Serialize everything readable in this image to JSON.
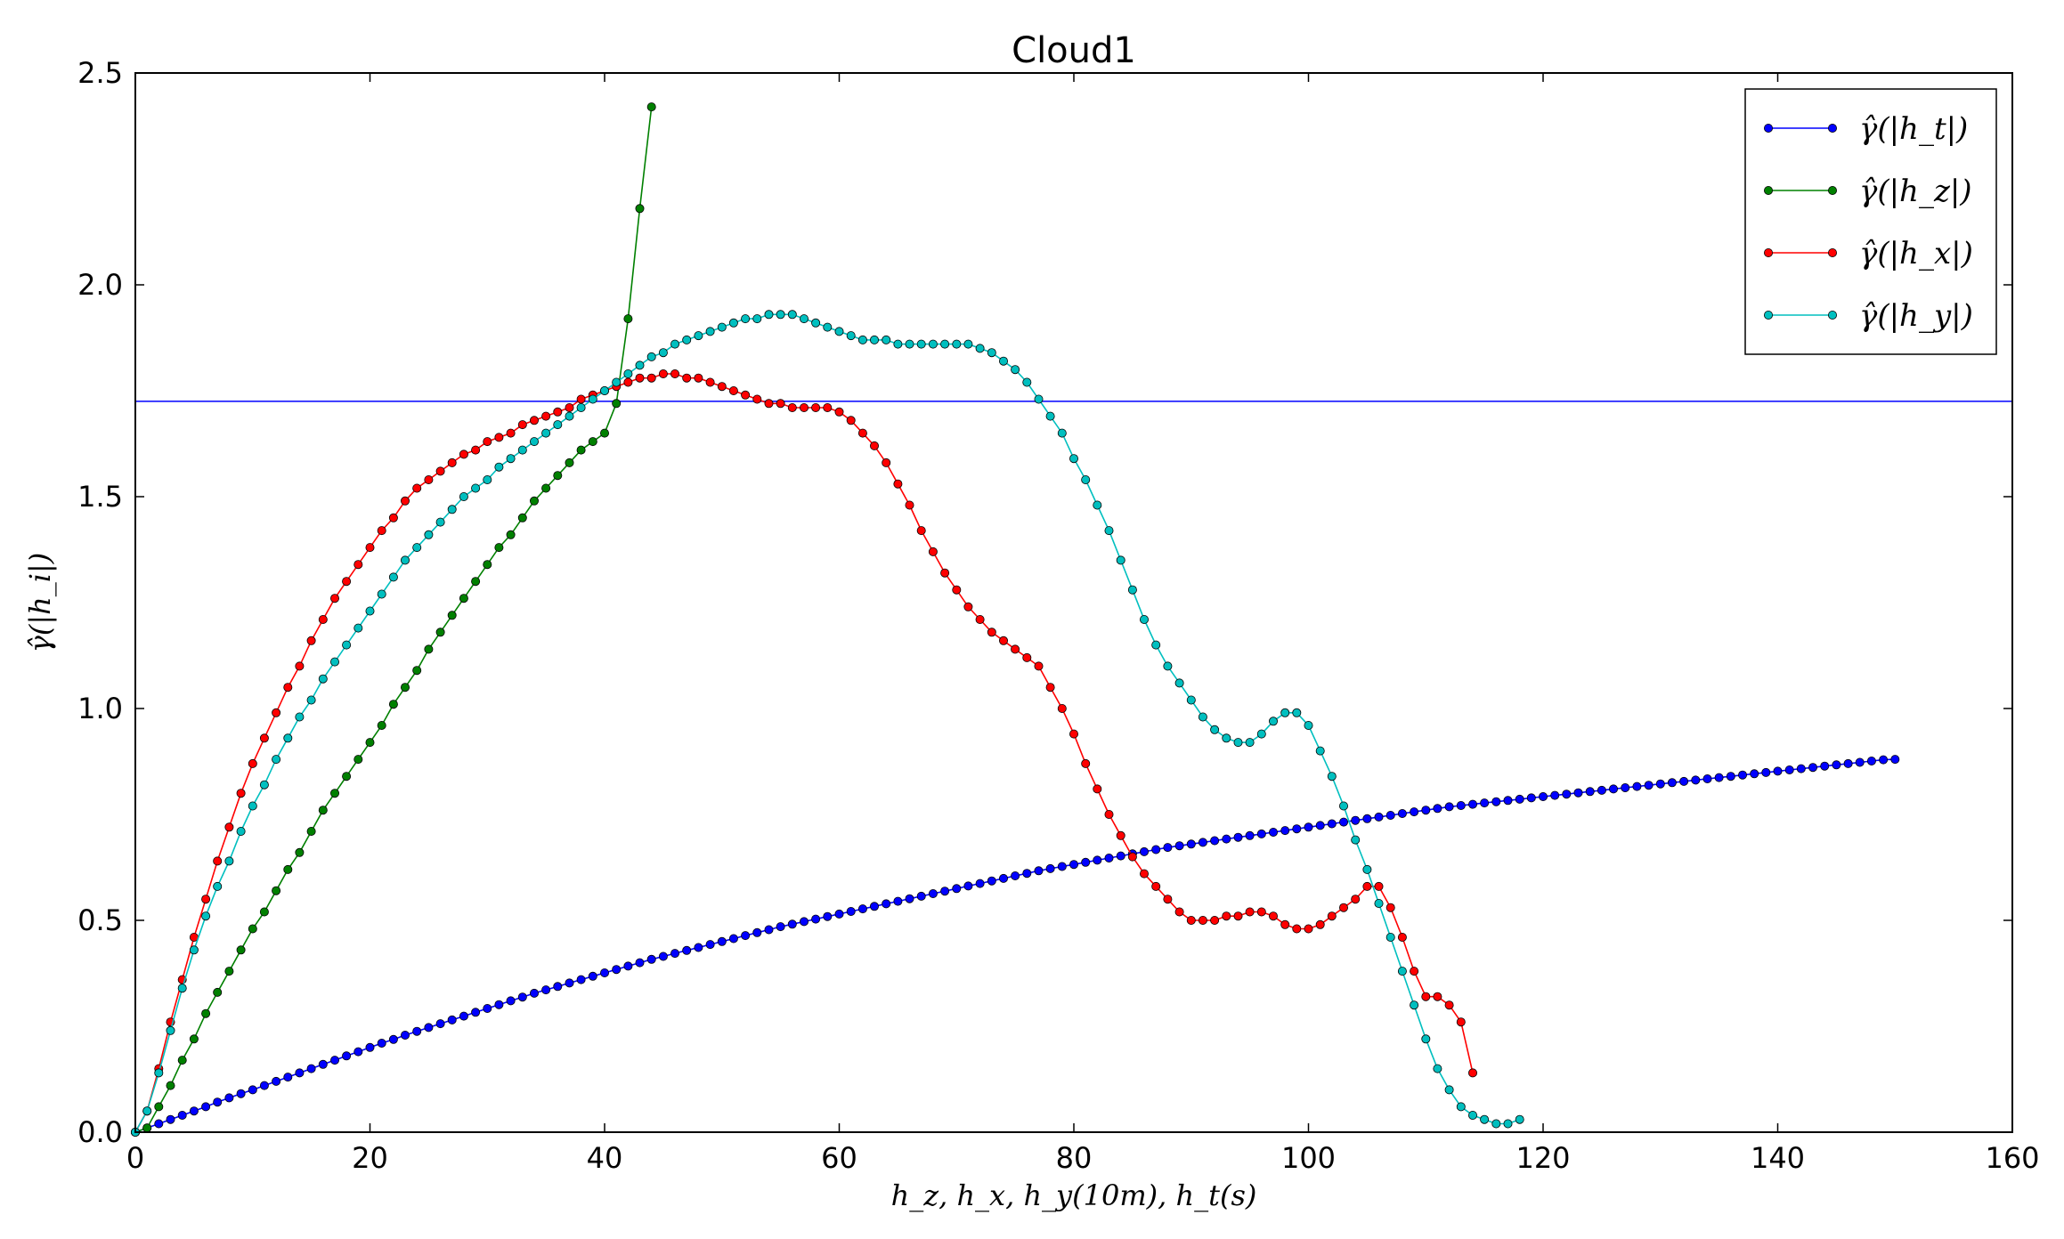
{
  "chart_data": {
    "type": "line",
    "title": "Cloud1",
    "xlabel": "h_z, h_x, h_y(10m), h_t(s)",
    "ylabel": "γ̂(|h_i|)",
    "xlim": [
      0,
      160
    ],
    "ylim": [
      0,
      2.5
    ],
    "xticks": [
      0,
      20,
      40,
      60,
      80,
      100,
      120,
      140,
      160
    ],
    "yticks": [
      0.0,
      0.5,
      1.0,
      1.5,
      2.0,
      2.5
    ],
    "xtick_labels": [
      "0",
      "20",
      "40",
      "60",
      "80",
      "100",
      "120",
      "140",
      "160"
    ],
    "ytick_labels": [
      "0.0",
      "0.5",
      "1.0",
      "1.5",
      "2.0",
      "2.5"
    ],
    "legend_position": "top-right",
    "grid": false,
    "hline": {
      "y": 1.725,
      "color": "#0000ff",
      "series": "ht"
    },
    "series": [
      {
        "key": "ht",
        "name": "γ̂(|h_t|)",
        "color": "#0000ff",
        "x_start": 0,
        "x_step": 1,
        "values": [
          0.0,
          0.01,
          0.02,
          0.03,
          0.04,
          0.05,
          0.06,
          0.071,
          0.081,
          0.091,
          0.1,
          0.11,
          0.12,
          0.13,
          0.14,
          0.15,
          0.16,
          0.17,
          0.18,
          0.19,
          0.2,
          0.21,
          0.219,
          0.229,
          0.238,
          0.247,
          0.256,
          0.265,
          0.274,
          0.283,
          0.292,
          0.301,
          0.31,
          0.319,
          0.328,
          0.336,
          0.344,
          0.352,
          0.36,
          0.368,
          0.376,
          0.384,
          0.392,
          0.4,
          0.408,
          0.415,
          0.422,
          0.429,
          0.436,
          0.443,
          0.45,
          0.457,
          0.464,
          0.471,
          0.478,
          0.485,
          0.491,
          0.497,
          0.503,
          0.509,
          0.515,
          0.521,
          0.527,
          0.533,
          0.539,
          0.545,
          0.551,
          0.557,
          0.563,
          0.569,
          0.575,
          0.581,
          0.587,
          0.593,
          0.599,
          0.605,
          0.611,
          0.617,
          0.622,
          0.627,
          0.632,
          0.637,
          0.642,
          0.647,
          0.652,
          0.657,
          0.662,
          0.667,
          0.672,
          0.676,
          0.68,
          0.684,
          0.688,
          0.692,
          0.696,
          0.7,
          0.704,
          0.708,
          0.712,
          0.716,
          0.72,
          0.724,
          0.728,
          0.732,
          0.736,
          0.74,
          0.744,
          0.748,
          0.752,
          0.756,
          0.76,
          0.764,
          0.768,
          0.771,
          0.774,
          0.777,
          0.78,
          0.783,
          0.786,
          0.789,
          0.792,
          0.795,
          0.798,
          0.801,
          0.804,
          0.807,
          0.81,
          0.813,
          0.816,
          0.819,
          0.822,
          0.825,
          0.828,
          0.831,
          0.834,
          0.837,
          0.84,
          0.843,
          0.846,
          0.849,
          0.852,
          0.855,
          0.858,
          0.861,
          0.864,
          0.867,
          0.87,
          0.873,
          0.876,
          0.879,
          0.88
        ]
      },
      {
        "key": "hz",
        "name": "γ̂(|h_z|)",
        "color": "#008000",
        "x_start": 0,
        "x_step": 1,
        "values": [
          0.0,
          0.01,
          0.06,
          0.11,
          0.17,
          0.22,
          0.28,
          0.33,
          0.38,
          0.43,
          0.48,
          0.52,
          0.57,
          0.62,
          0.66,
          0.71,
          0.76,
          0.8,
          0.84,
          0.88,
          0.92,
          0.96,
          1.01,
          1.05,
          1.09,
          1.14,
          1.18,
          1.22,
          1.26,
          1.3,
          1.34,
          1.38,
          1.41,
          1.45,
          1.49,
          1.52,
          1.55,
          1.58,
          1.61,
          1.63,
          1.65,
          1.72,
          1.92,
          2.18,
          2.42
        ]
      },
      {
        "key": "hx",
        "name": "γ̂(|h_x|)",
        "color": "#ff0000",
        "x_start": 0,
        "x_step": 1,
        "values": [
          0.0,
          0.05,
          0.15,
          0.26,
          0.36,
          0.46,
          0.55,
          0.64,
          0.72,
          0.8,
          0.87,
          0.93,
          0.99,
          1.05,
          1.1,
          1.16,
          1.21,
          1.26,
          1.3,
          1.34,
          1.38,
          1.42,
          1.45,
          1.49,
          1.52,
          1.54,
          1.56,
          1.58,
          1.6,
          1.61,
          1.63,
          1.64,
          1.65,
          1.67,
          1.68,
          1.69,
          1.7,
          1.71,
          1.73,
          1.74,
          1.75,
          1.76,
          1.77,
          1.78,
          1.78,
          1.79,
          1.79,
          1.78,
          1.78,
          1.77,
          1.76,
          1.75,
          1.74,
          1.73,
          1.72,
          1.72,
          1.71,
          1.71,
          1.71,
          1.71,
          1.7,
          1.68,
          1.65,
          1.62,
          1.58,
          1.53,
          1.48,
          1.42,
          1.37,
          1.32,
          1.28,
          1.24,
          1.21,
          1.18,
          1.16,
          1.14,
          1.12,
          1.1,
          1.05,
          1.0,
          0.94,
          0.87,
          0.81,
          0.75,
          0.7,
          0.65,
          0.61,
          0.58,
          0.55,
          0.52,
          0.5,
          0.5,
          0.5,
          0.51,
          0.51,
          0.52,
          0.52,
          0.51,
          0.49,
          0.48,
          0.48,
          0.49,
          0.51,
          0.53,
          0.55,
          0.58,
          0.58,
          0.53,
          0.46,
          0.38,
          0.32,
          0.32,
          0.3,
          0.26,
          0.14
        ]
      },
      {
        "key": "hy",
        "name": "γ̂(|h_y|)",
        "color": "#00bfbf",
        "x_start": 0,
        "x_step": 1,
        "values": [
          0.0,
          0.05,
          0.14,
          0.24,
          0.34,
          0.43,
          0.51,
          0.58,
          0.64,
          0.71,
          0.77,
          0.82,
          0.88,
          0.93,
          0.98,
          1.02,
          1.07,
          1.11,
          1.15,
          1.19,
          1.23,
          1.27,
          1.31,
          1.35,
          1.38,
          1.41,
          1.44,
          1.47,
          1.5,
          1.52,
          1.54,
          1.57,
          1.59,
          1.61,
          1.63,
          1.65,
          1.67,
          1.69,
          1.71,
          1.73,
          1.75,
          1.77,
          1.79,
          1.81,
          1.83,
          1.84,
          1.86,
          1.87,
          1.88,
          1.89,
          1.9,
          1.91,
          1.92,
          1.92,
          1.93,
          1.93,
          1.93,
          1.92,
          1.91,
          1.9,
          1.89,
          1.88,
          1.87,
          1.87,
          1.87,
          1.86,
          1.86,
          1.86,
          1.86,
          1.86,
          1.86,
          1.86,
          1.85,
          1.84,
          1.82,
          1.8,
          1.77,
          1.73,
          1.69,
          1.65,
          1.59,
          1.54,
          1.48,
          1.42,
          1.35,
          1.28,
          1.21,
          1.15,
          1.1,
          1.06,
          1.02,
          0.98,
          0.95,
          0.93,
          0.92,
          0.92,
          0.94,
          0.97,
          0.99,
          0.99,
          0.96,
          0.9,
          0.84,
          0.77,
          0.69,
          0.62,
          0.54,
          0.46,
          0.38,
          0.3,
          0.22,
          0.15,
          0.1,
          0.06,
          0.04,
          0.03,
          0.02,
          0.02,
          0.03
        ]
      }
    ]
  }
}
